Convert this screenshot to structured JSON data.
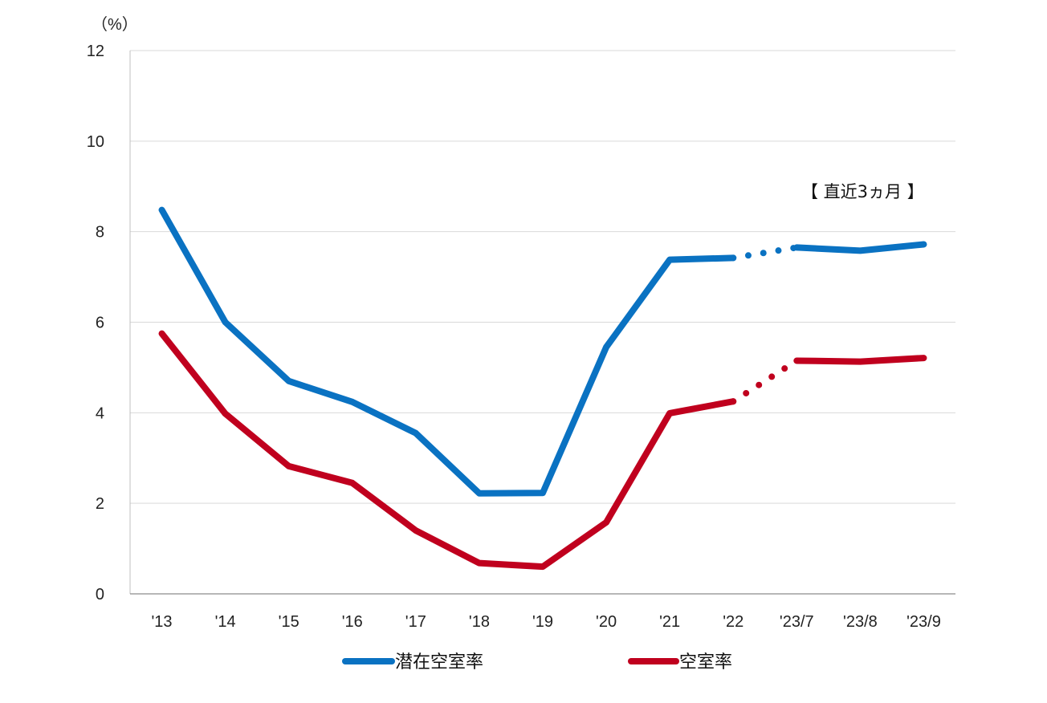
{
  "chart_data": {
    "type": "line",
    "y_unit": "（%）",
    "annotation": "【 直近3ヵ月 】",
    "categories": [
      "'13",
      "'14",
      "'15",
      "'16",
      "'17",
      "'18",
      "'19",
      "'20",
      "'21",
      "'22",
      "'23/7",
      "'23/8",
      "'23/9"
    ],
    "ylim": [
      0,
      12
    ],
    "yticks": [
      0,
      2,
      4,
      6,
      8,
      10,
      12
    ],
    "grid": true,
    "legend_position": "bottom",
    "dotted_gap_between": [
      "'22",
      "'23/7"
    ],
    "series": [
      {
        "name": "潜在空室率",
        "color": "#0a72c2",
        "values": [
          8.48,
          6.0,
          4.7,
          4.24,
          3.55,
          2.22,
          2.23,
          5.45,
          7.38,
          7.42,
          7.65,
          7.58,
          7.72
        ]
      },
      {
        "name": "空室率",
        "color": "#c0001e",
        "values": [
          5.75,
          3.98,
          2.82,
          2.45,
          1.4,
          0.68,
          0.6,
          1.58,
          3.99,
          4.25,
          5.15,
          5.13,
          5.21
        ]
      }
    ]
  }
}
